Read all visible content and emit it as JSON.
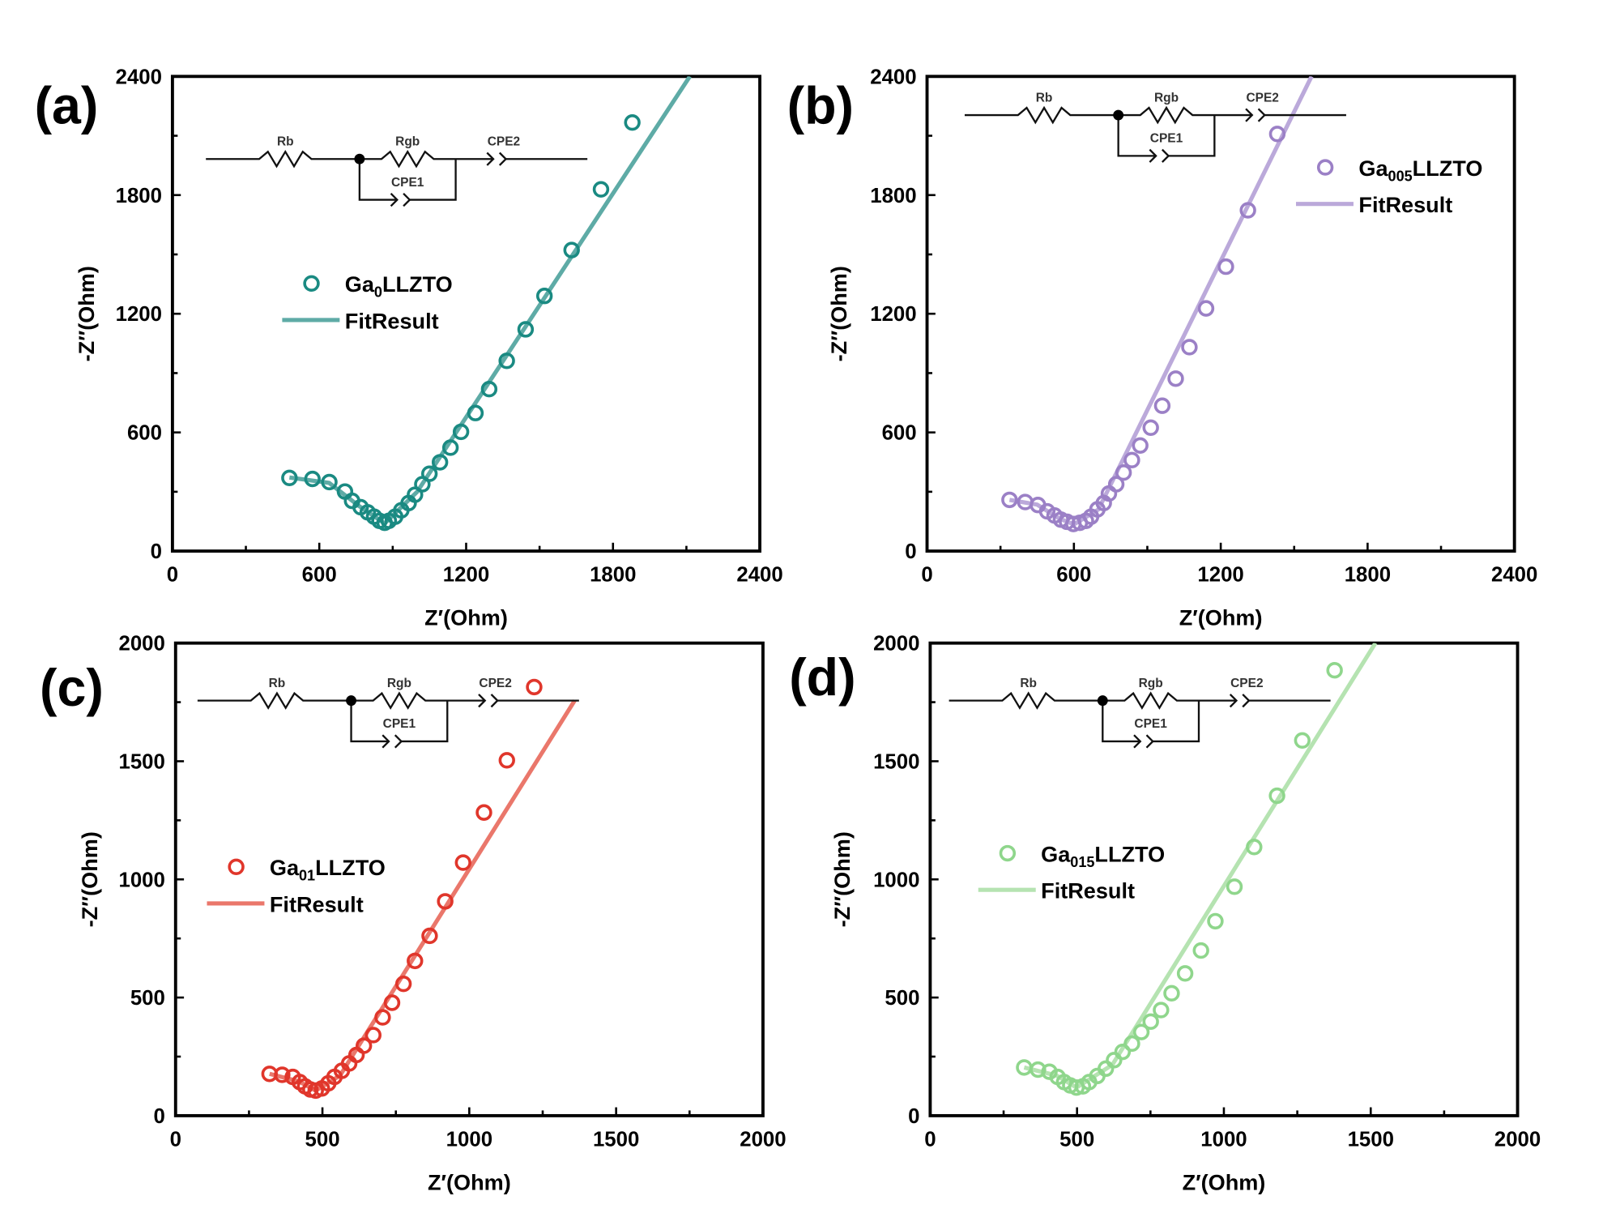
{
  "chart_data": [
    {
      "type": "scatter",
      "panel_label": "(a)",
      "xlabel": "Z′(Ohm)",
      "ylabel": "-Z″(Ohm)",
      "xlim": [
        0,
        2400
      ],
      "ylim": [
        0,
        2400
      ],
      "xticks": [
        0,
        600,
        1200,
        1800,
        2400
      ],
      "yticks": [
        0,
        600,
        1200,
        1800,
        2400
      ],
      "legend": {
        "placement": "center-left",
        "marker_name": {
          "prefix": "Ga",
          "sub": "0",
          "suffix": "LLZTO"
        },
        "fit_name": "FitResult"
      },
      "circuit": {
        "r1": "Rb",
        "r2": "Rgb",
        "c2": "CPE2",
        "c1": "CPE1"
      },
      "marker_color": "#1a8a82",
      "fit_color": "#5eaba6",
      "x": [
        478,
        572,
        641,
        705,
        734,
        769,
        798,
        824,
        846,
        867,
        884,
        910,
        935,
        965,
        991,
        1021,
        1050,
        1093,
        1136,
        1179,
        1238,
        1294,
        1366,
        1443,
        1520,
        1631,
        1751,
        1879
      ],
      "y": [
        370,
        365,
        349,
        301,
        254,
        222,
        196,
        174,
        153,
        143,
        153,
        174,
        206,
        243,
        285,
        338,
        391,
        449,
        523,
        603,
        698,
        819,
        962,
        1121,
        1290,
        1522,
        1829,
        2167
      ],
      "fit": [
        [
          478,
          372
        ],
        [
          640,
          345
        ],
        [
          760,
          230
        ],
        [
          867,
          140
        ],
        [
          1000,
          300
        ],
        [
          2114,
          2400
        ]
      ]
    },
    {
      "type": "scatter",
      "panel_label": "(b)",
      "xlabel": "Z′(Ohm)",
      "ylabel": "-Z″(Ohm)",
      "xlim": [
        0,
        2400
      ],
      "ylim": [
        0,
        2400
      ],
      "xticks": [
        0,
        600,
        1200,
        1800,
        2400
      ],
      "yticks": [
        0,
        600,
        1200,
        1800,
        2400
      ],
      "legend": {
        "placement": "top-right",
        "marker_name": {
          "prefix": "Ga",
          "sub": "005",
          "suffix": "LLZTO"
        },
        "fit_name": "FitResult"
      },
      "circuit": {
        "r1": "Rb",
        "r2": "Rgb",
        "c2": "CPE2",
        "c1": "CPE1"
      },
      "marker_color": "#9b80c6",
      "fit_color": "#bba9da",
      "x": [
        337,
        401,
        453,
        491,
        521,
        547,
        572,
        598,
        624,
        649,
        670,
        696,
        722,
        743,
        773,
        803,
        837,
        871,
        914,
        961,
        1016,
        1072,
        1140,
        1221,
        1311,
        1431
      ],
      "y": [
        259,
        248,
        233,
        201,
        180,
        159,
        148,
        137,
        143,
        153,
        174,
        211,
        243,
        291,
        338,
        397,
        460,
        534,
        624,
        735,
        872,
        1031,
        1227,
        1438,
        1723,
        2109
      ],
      "fit": [
        [
          337,
          259
        ],
        [
          450,
          235
        ],
        [
          540,
          165
        ],
        [
          600,
          135
        ],
        [
          700,
          210
        ],
        [
          1571,
          2400
        ]
      ]
    },
    {
      "type": "scatter",
      "panel_label": "(c)",
      "xlabel": "Z′(Ohm)",
      "ylabel": "-Z″(Ohm)",
      "xlim": [
        0,
        2000
      ],
      "ylim": [
        0,
        2000
      ],
      "xticks": [
        0,
        500,
        1000,
        1500,
        2000
      ],
      "yticks": [
        0,
        500,
        1000,
        1500,
        2000
      ],
      "legend": {
        "placement": "center-left",
        "marker_name": {
          "prefix": "Ga",
          "sub": "01",
          "suffix": "LLZTO"
        },
        "fit_name": "FitResult"
      },
      "circuit": {
        "r1": "Rb",
        "r2": "Rgb",
        "c2": "CPE2",
        "c1": "CPE1"
      },
      "marker_color": "#e0362b",
      "fit_color": "#ea776b",
      "x": [
        320,
        363,
        399,
        423,
        441,
        459,
        477,
        498,
        520,
        541,
        566,
        591,
        616,
        641,
        673,
        705,
        737,
        776,
        815,
        865,
        918,
        979,
        1050,
        1128,
        1221
      ],
      "y": [
        177,
        173,
        164,
        142,
        124,
        111,
        106,
        115,
        137,
        164,
        190,
        221,
        257,
        296,
        341,
        416,
        478,
        558,
        655,
        761,
        907,
        1071,
        1283,
        1504,
        1814
      ],
      "fit": [
        [
          320,
          177
        ],
        [
          420,
          145
        ],
        [
          477,
          106
        ],
        [
          560,
          170
        ],
        [
          1359,
          1757
        ]
      ]
    },
    {
      "type": "scatter",
      "panel_label": "(d)",
      "xlabel": "Z′(Ohm)",
      "ylabel": "-Z″(Ohm)",
      "xlim": [
        0,
        2000
      ],
      "ylim": [
        0,
        2000
      ],
      "xticks": [
        0,
        500,
        1000,
        1500,
        2000
      ],
      "yticks": [
        0,
        500,
        1000,
        1500,
        2000
      ],
      "legend": {
        "placement": "center-left",
        "marker_name": {
          "prefix": "Ga",
          "sub": "015",
          "suffix": "LLZTO"
        },
        "fit_name": "FitResult"
      },
      "circuit": {
        "r1": "Rb",
        "r2": "Rgb",
        "c2": "CPE2",
        "c1": "CPE1"
      },
      "marker_color": "#8fd68c",
      "fit_color": "#b5e3b1",
      "x": [
        320,
        367,
        406,
        434,
        456,
        477,
        498,
        520,
        541,
        569,
        598,
        626,
        655,
        687,
        719,
        751,
        786,
        822,
        868,
        922,
        971,
        1036,
        1103,
        1181,
        1267,
        1377
      ],
      "y": [
        204,
        195,
        186,
        164,
        142,
        128,
        119,
        124,
        142,
        168,
        199,
        235,
        270,
        305,
        354,
        398,
        447,
        518,
        602,
        699,
        823,
        969,
        1137,
        1354,
        1588,
        1885
      ],
      "fit": [
        [
          320,
          204
        ],
        [
          430,
          170
        ],
        [
          498,
          119
        ],
        [
          620,
          215
        ],
        [
          1516,
          2000
        ]
      ]
    }
  ]
}
